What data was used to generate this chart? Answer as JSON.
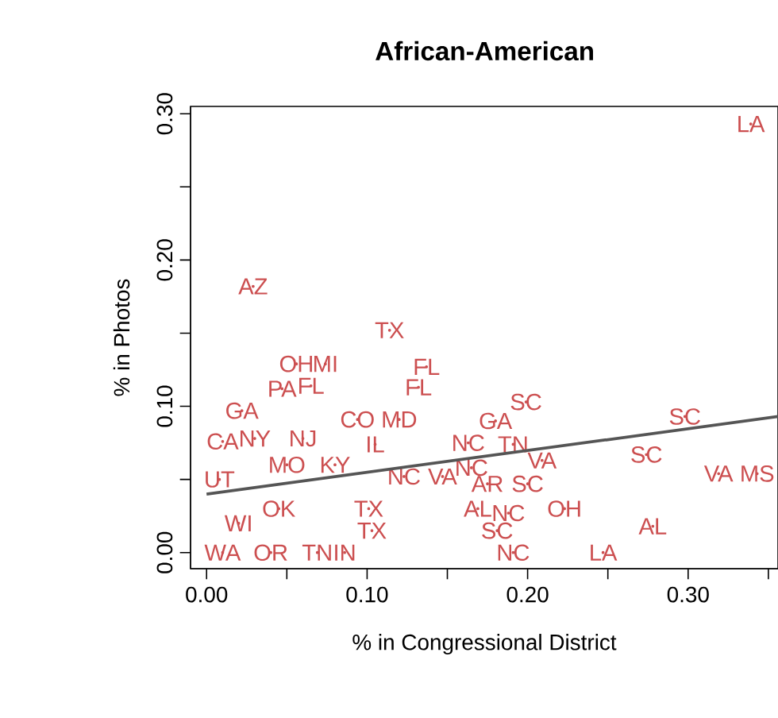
{
  "chart_data": {
    "type": "scatter",
    "title": "African-American",
    "xlabel": "% in Congressional District",
    "ylabel": "% in Photos",
    "xlim": [
      -0.01,
      0.356
    ],
    "ylim": [
      -0.011,
      0.305
    ],
    "xticks": [
      {
        "value": 0,
        "label": "0.00"
      },
      {
        "value": 0.05,
        "label": null
      },
      {
        "value": 0.1,
        "label": "0.10"
      },
      {
        "value": 0.15,
        "label": null
      },
      {
        "value": 0.2,
        "label": "0.20"
      },
      {
        "value": 0.25,
        "label": null
      },
      {
        "value": 0.3,
        "label": "0.30"
      },
      {
        "value": 0.35,
        "label": null
      }
    ],
    "yticks": [
      {
        "value": 0,
        "label": "0.00"
      },
      {
        "value": 0.05,
        "label": null
      },
      {
        "value": 0.1,
        "label": "0.10"
      },
      {
        "value": 0.15,
        "label": null
      },
      {
        "value": 0.2,
        "label": "0.20"
      },
      {
        "value": 0.25,
        "label": null
      },
      {
        "value": 0.3,
        "label": "0.30"
      }
    ],
    "series": [
      {
        "color": "#cc4f50",
        "x": [
          0.339,
          0.029,
          0.114,
          0.137,
          0.132,
          0.199,
          0.18,
          0.298,
          0.163,
          0.165,
          0.191,
          0.209,
          0.274,
          0.319,
          0.343,
          0.123,
          0.147,
          0.175,
          0.2,
          0.169,
          0.188,
          0.223,
          0.278,
          0.181,
          0.191,
          0.247,
          0.12,
          0.056,
          0.074,
          0.047,
          0.065,
          0.022,
          0.094,
          0.01,
          0.105,
          0.101,
          0.103,
          0.069,
          0.086,
          0.03,
          0.06,
          0.05,
          0.08,
          0.008,
          0.02,
          0.045,
          0.01,
          0.04
        ],
        "values": [
          0.293,
          0.182,
          0.152,
          0.127,
          0.113,
          0.103,
          0.09,
          0.093,
          0.075,
          0.058,
          0.074,
          0.063,
          0.067,
          0.054,
          0.054,
          0.052,
          0.052,
          0.047,
          0.047,
          0.03,
          0.027,
          0.03,
          0.018,
          0.015,
          0.0,
          0.0,
          0.091,
          0.129,
          0.129,
          0.112,
          0.114,
          0.097,
          0.091,
          0.076,
          0.074,
          0.03,
          0.015,
          0.0,
          0.0,
          0.078,
          0.078,
          0.06,
          0.06,
          0.05,
          0.02,
          0.03,
          0.0,
          0.0
        ],
        "value_labels": [
          "LA",
          "AZ",
          "TX",
          "FL",
          "FL",
          "SC",
          "GA",
          "SC",
          "NC",
          "NC",
          "TN",
          "VA",
          "SC",
          "VA",
          "MS",
          "NC",
          "VA",
          "AR",
          "SC",
          "AL",
          "NC",
          "OH",
          "AL",
          "SC",
          "NC",
          "LA",
          "MD",
          "OH",
          "MI",
          "PA",
          "FL",
          "GA",
          "CO",
          "CA",
          "IL",
          "TX",
          "TX",
          "TN",
          "IN",
          "NY",
          "NJ",
          "MO",
          "KY",
          "UT",
          "WI",
          "OK",
          "WA",
          "OR"
        ]
      },
      {
        "type": "line",
        "color": "#555555",
        "x": [
          0,
          0.356
        ],
        "values": [
          0.04,
          0.093
        ]
      }
    ]
  }
}
